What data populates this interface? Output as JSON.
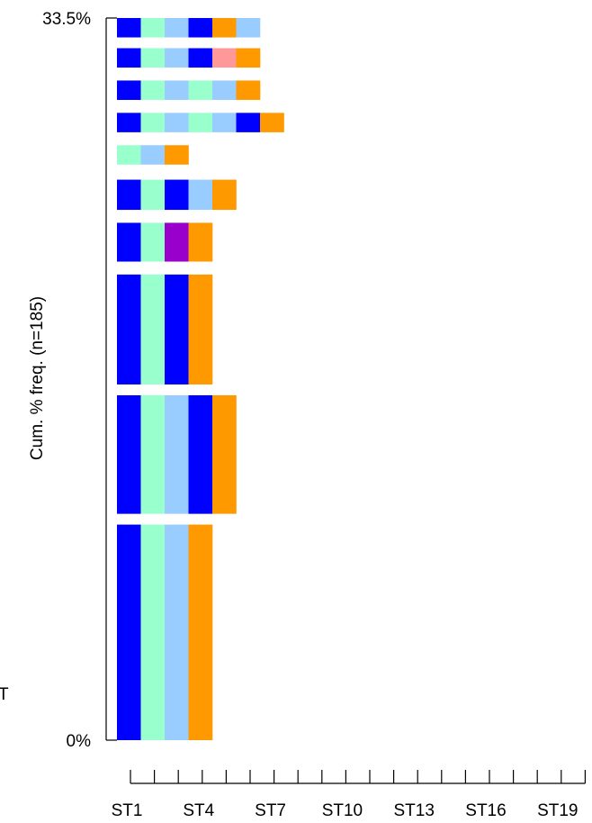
{
  "colors": {
    "blue": "#0000FF",
    "aqua": "#99FFCC",
    "sky": "#99CCFF",
    "orange": "#FF9900",
    "purple": "#9900CC",
    "pink": "#FF9999"
  },
  "stray_text": "T",
  "chart_data": {
    "type": "stacked-sequence-bars",
    "ylabel": "Cum. % freq. (n=185)",
    "y_tick_labels": [
      "0%",
      "33.5%"
    ],
    "ylim": [
      0,
      33.5
    ],
    "x_positions": 20,
    "x_tick_labels": [
      "ST1",
      "ST4",
      "ST7",
      "ST10",
      "ST13",
      "ST16",
      "ST19"
    ],
    "x_tick_label_positions": [
      1,
      4,
      7,
      10,
      13,
      16,
      19
    ],
    "rows": [
      {
        "y_start": 0.0,
        "y_end": 10.0,
        "sequence": [
          "blue",
          "aqua",
          "sky",
          "orange"
        ]
      },
      {
        "y_start": 10.5,
        "y_end": 16.0,
        "sequence": [
          "blue",
          "aqua",
          "sky",
          "blue",
          "orange"
        ]
      },
      {
        "y_start": 16.5,
        "y_end": 21.6,
        "sequence": [
          "blue",
          "aqua",
          "blue",
          "orange"
        ]
      },
      {
        "y_start": 22.2,
        "y_end": 24.0,
        "sequence": [
          "blue",
          "aqua",
          "purple",
          "orange"
        ]
      },
      {
        "y_start": 24.6,
        "y_end": 26.0,
        "sequence": [
          "blue",
          "aqua",
          "blue",
          "sky",
          "orange"
        ]
      },
      {
        "y_start": 26.7,
        "y_end": 27.6,
        "sequence": [
          "aqua",
          "sky",
          "orange"
        ]
      },
      {
        "y_start": 28.2,
        "y_end": 29.1,
        "sequence": [
          "blue",
          "aqua",
          "sky",
          "aqua",
          "sky",
          "blue",
          "orange"
        ]
      },
      {
        "y_start": 29.7,
        "y_end": 30.6,
        "sequence": [
          "blue",
          "aqua",
          "sky",
          "aqua",
          "sky",
          "orange"
        ]
      },
      {
        "y_start": 31.2,
        "y_end": 32.1,
        "sequence": [
          "blue",
          "aqua",
          "sky",
          "blue",
          "pink",
          "orange"
        ]
      },
      {
        "y_start": 32.6,
        "y_end": 33.5,
        "sequence": [
          "blue",
          "aqua",
          "sky",
          "blue",
          "orange",
          "sky"
        ]
      }
    ]
  }
}
